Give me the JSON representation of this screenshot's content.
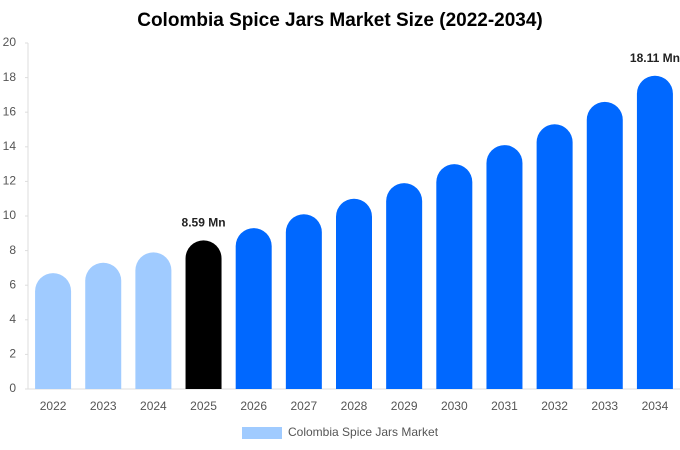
{
  "chart_data": {
    "type": "bar",
    "title": "Colombia Spice Jars Market Size (2022-2034)",
    "categories": [
      "2022",
      "2023",
      "2024",
      "2025",
      "2026",
      "2027",
      "2028",
      "2029",
      "2030",
      "2031",
      "2032",
      "2033",
      "2034"
    ],
    "series": [
      {
        "name": "Colombia Spice Jars Market",
        "color": "#a0cbff",
        "colors": [
          "#a0cbff",
          "#a0cbff",
          "#a0cbff",
          "#000000",
          "#0068ff",
          "#0068ff",
          "#0068ff",
          "#0068ff",
          "#0068ff",
          "#0068ff",
          "#0068ff",
          "#0068ff",
          "#0068ff"
        ],
        "values": [
          6.7,
          7.3,
          7.9,
          8.59,
          9.3,
          10.1,
          11.0,
          11.9,
          13.0,
          14.1,
          15.3,
          16.6,
          18.11
        ],
        "value_labels": [
          null,
          null,
          null,
          "8.59 Mn",
          null,
          null,
          null,
          null,
          null,
          null,
          null,
          null,
          "18.11 Mn"
        ]
      }
    ],
    "ylim": [
      0,
      20
    ],
    "yticks": [
      0,
      2,
      4,
      6,
      8,
      10,
      12,
      14,
      16,
      18,
      20
    ],
    "grid": false,
    "legend": "bottom"
  }
}
